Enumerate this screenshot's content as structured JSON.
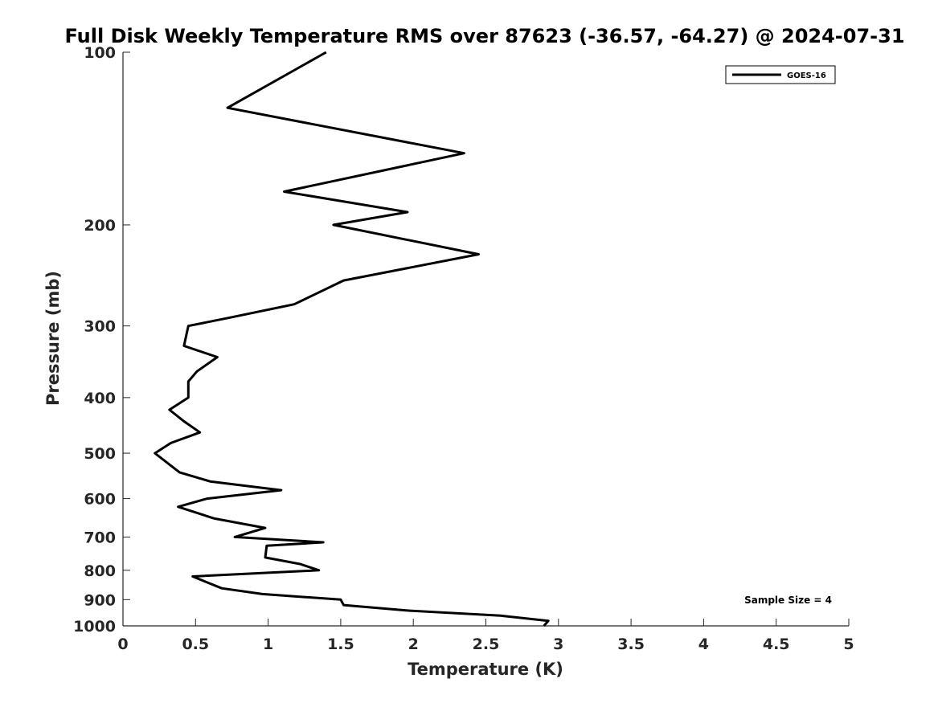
{
  "chart_data": {
    "type": "line",
    "title": "Full Disk Weekly Temperature RMS over 87623 (-36.57, -64.27) @ 2024-07-31",
    "xlabel": "Temperature (K)",
    "ylabel": "Pressure (mb)",
    "xlim": [
      0,
      5
    ],
    "ylim": [
      100,
      1000
    ],
    "y_scale": "log",
    "y_reversed": true,
    "x_ticks": [
      "0",
      "0.5",
      "1",
      "1.5",
      "2",
      "2.5",
      "3",
      "3.5",
      "4",
      "4.5",
      "5"
    ],
    "y_ticks": [
      "100",
      "200",
      "300",
      "400",
      "500",
      "600",
      "700",
      "800",
      "900",
      "1000"
    ],
    "grid": false,
    "legend_position": "top-right",
    "series": [
      {
        "name": "GOES-16",
        "color": "#000000",
        "points": [
          [
            1.4,
            100
          ],
          [
            0.72,
            125
          ],
          [
            2.35,
            150
          ],
          [
            1.11,
            175
          ],
          [
            1.96,
            190
          ],
          [
            1.45,
            200
          ],
          [
            2.45,
            225
          ],
          [
            1.52,
            250
          ],
          [
            1.18,
            275
          ],
          [
            0.74,
            290
          ],
          [
            0.45,
            300
          ],
          [
            0.42,
            325
          ],
          [
            0.65,
            340
          ],
          [
            0.51,
            360
          ],
          [
            0.45,
            375
          ],
          [
            0.45,
            400
          ],
          [
            0.32,
            420
          ],
          [
            0.42,
            440
          ],
          [
            0.53,
            460
          ],
          [
            0.33,
            480
          ],
          [
            0.22,
            500
          ],
          [
            0.39,
            540
          ],
          [
            0.6,
            560
          ],
          [
            1.09,
            580
          ],
          [
            0.58,
            600
          ],
          [
            0.38,
            620
          ],
          [
            0.63,
            650
          ],
          [
            0.98,
            675
          ],
          [
            0.77,
            700
          ],
          [
            1.38,
            715
          ],
          [
            0.99,
            725
          ],
          [
            0.98,
            760
          ],
          [
            1.22,
            780
          ],
          [
            1.35,
            800
          ],
          [
            0.48,
            820
          ],
          [
            0.58,
            840
          ],
          [
            0.68,
            860
          ],
          [
            0.96,
            880
          ],
          [
            1.5,
            900
          ],
          [
            1.52,
            920
          ],
          [
            1.95,
            940
          ],
          [
            2.6,
            960
          ],
          [
            2.93,
            980
          ],
          [
            2.9,
            1000
          ]
        ]
      }
    ],
    "annotations": [
      "Sample Size = 4"
    ]
  }
}
